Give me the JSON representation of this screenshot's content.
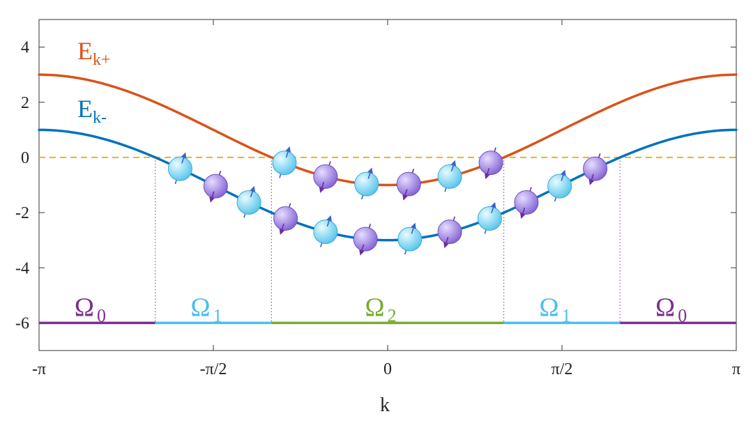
{
  "colors": {
    "upper_band": "#D95319",
    "lower_band": "#0072BD",
    "fermi_level": "#EDB120",
    "omega0": "#7E2F8E",
    "omega1": "#4DBEEE",
    "omega2": "#77AC30",
    "spin_up_fill": "#7fd9f5",
    "spin_down_fill": "#9b7fe0",
    "spin_up_arrow": "#3b63c9",
    "spin_down_arrow": "#6a2fa0"
  },
  "chart_data": {
    "type": "line",
    "xlabel": "k",
    "ylabel": "",
    "xlim": [
      -3.14159,
      3.14159
    ],
    "ylim": [
      -7,
      5
    ],
    "x_ticks": [
      {
        "value": -3.14159,
        "label": "-π"
      },
      {
        "value": -1.5708,
        "label": "-π/2"
      },
      {
        "value": 0,
        "label": "0"
      },
      {
        "value": 1.5708,
        "label": "π/2"
      },
      {
        "value": 3.14159,
        "label": "π"
      }
    ],
    "y_ticks": [
      {
        "value": 4,
        "label": "4"
      },
      {
        "value": 2,
        "label": "2"
      },
      {
        "value": 0,
        "label": "0"
      },
      {
        "value": -2,
        "label": "-2"
      },
      {
        "value": -4,
        "label": "-4"
      },
      {
        "value": -6,
        "label": "-6"
      }
    ],
    "grid": false,
    "series": [
      {
        "key": "upper",
        "label_main": "E",
        "label_sub": "k+",
        "formula": "1 - 2cos(k)",
        "min": -1,
        "max": 3
      },
      {
        "key": "lower",
        "label_main": "E",
        "label_sub": "k-",
        "formula": "-1 - 2cos(k)",
        "min": -3,
        "max": 1
      }
    ],
    "fermi_level": 0,
    "region_bar_y": -6,
    "regions": [
      {
        "name": "Ω",
        "sub": "0",
        "x_range": [
          -3.14159,
          -2.094
        ],
        "color_key": "omega0"
      },
      {
        "name": "Ω",
        "sub": "1",
        "x_range": [
          -2.094,
          -1.047
        ],
        "color_key": "omega1"
      },
      {
        "name": "Ω",
        "sub": "2",
        "x_range": [
          -1.047,
          1.047
        ],
        "color_key": "omega2"
      },
      {
        "name": "Ω",
        "sub": "1",
        "x_range": [
          1.047,
          2.094
        ],
        "color_key": "omega1"
      },
      {
        "name": "Ω",
        "sub": "0",
        "x_range": [
          2.094,
          3.14159
        ],
        "color_key": "omega0"
      }
    ],
    "region_boundaries": [
      -2.094,
      -1.047,
      1.047,
      2.094
    ],
    "particles": [
      {
        "band": "lower",
        "k": -1.87,
        "spin": "up"
      },
      {
        "band": "lower",
        "k": -1.55,
        "spin": "down"
      },
      {
        "band": "lower",
        "k": -1.25,
        "spin": "up"
      },
      {
        "band": "lower",
        "k": -0.92,
        "spin": "down"
      },
      {
        "band": "lower",
        "k": -0.56,
        "spin": "up"
      },
      {
        "band": "lower",
        "k": -0.2,
        "spin": "down"
      },
      {
        "band": "lower",
        "k": 0.2,
        "spin": "up"
      },
      {
        "band": "lower",
        "k": 0.56,
        "spin": "down"
      },
      {
        "band": "lower",
        "k": 0.92,
        "spin": "up"
      },
      {
        "band": "lower",
        "k": 1.25,
        "spin": "down"
      },
      {
        "band": "lower",
        "k": 1.55,
        "spin": "up"
      },
      {
        "band": "lower",
        "k": 1.87,
        "spin": "down"
      },
      {
        "band": "upper",
        "k": -0.93,
        "spin": "up"
      },
      {
        "band": "upper",
        "k": -0.56,
        "spin": "down"
      },
      {
        "band": "upper",
        "k": -0.19,
        "spin": "up"
      },
      {
        "band": "upper",
        "k": 0.19,
        "spin": "down"
      },
      {
        "band": "upper",
        "k": 0.56,
        "spin": "up"
      },
      {
        "band": "upper",
        "k": 0.93,
        "spin": "down"
      }
    ]
  }
}
